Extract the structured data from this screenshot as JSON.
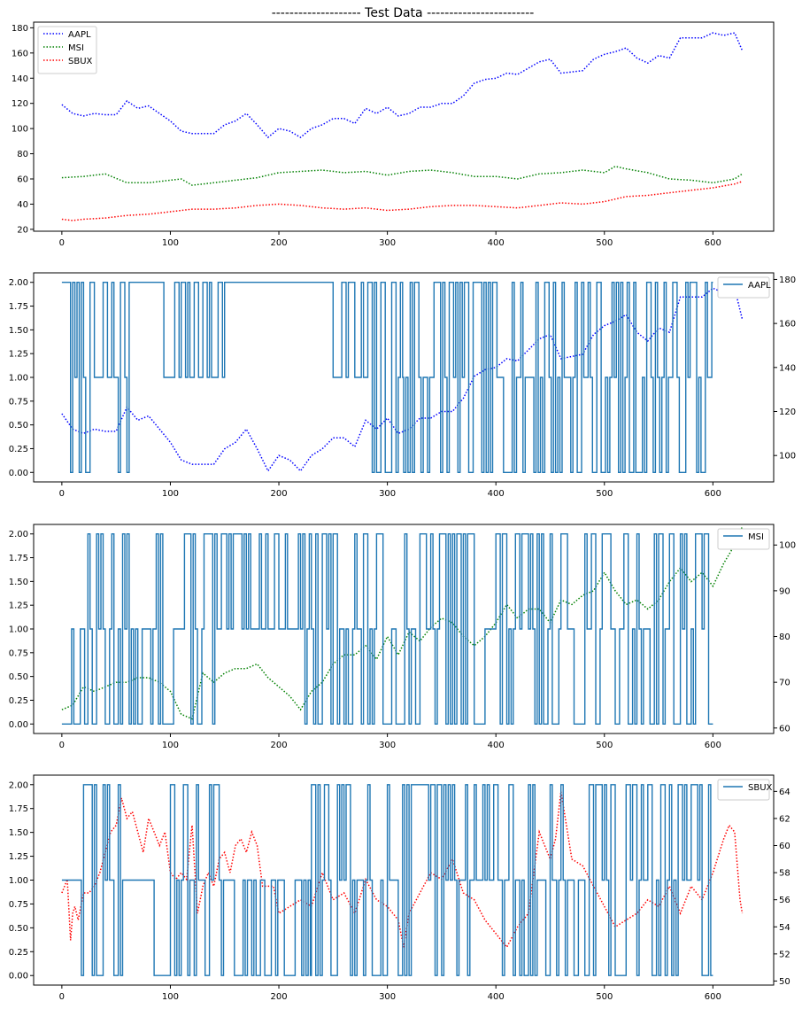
{
  "title": "-------------------- Test Data ------------------------",
  "colors": {
    "AAPL": "#0000ff",
    "MSI": "#008000",
    "SBUX": "#ff0000",
    "signal": "#1f77b4"
  },
  "chart_data": [
    {
      "type": "line",
      "title": "-------------------- Test Data ------------------------",
      "x_ticks": [
        0,
        100,
        200,
        300,
        400,
        500,
        600
      ],
      "y_ticks": [
        20,
        40,
        60,
        80,
        100,
        120,
        140,
        160,
        180
      ],
      "xlim": [
        -26,
        656
      ],
      "ylim": [
        18.5,
        184.5
      ],
      "grid": false,
      "legend": "top-left",
      "series": [
        {
          "name": "AAPL",
          "style": "dotted",
          "color": "#0000ff",
          "x": [
            0,
            10,
            20,
            30,
            40,
            50,
            60,
            70,
            80,
            90,
            100,
            110,
            120,
            130,
            140,
            150,
            160,
            170,
            180,
            190,
            200,
            210,
            220,
            230,
            240,
            250,
            260,
            270,
            280,
            290,
            300,
            310,
            320,
            330,
            340,
            350,
            360,
            370,
            380,
            390,
            400,
            410,
            420,
            430,
            440,
            450,
            460,
            470,
            480,
            490,
            500,
            510,
            520,
            530,
            540,
            550,
            560,
            570,
            580,
            590,
            600,
            610,
            620,
            627
          ],
          "y": [
            119,
            112,
            110,
            112,
            111,
            111,
            122,
            116,
            118,
            112,
            106,
            98,
            96,
            96,
            96,
            103,
            106,
            112,
            103,
            93,
            100,
            98,
            93,
            100,
            103,
            108,
            108,
            104,
            116,
            112,
            117,
            110,
            112,
            117,
            117,
            120,
            120,
            126,
            136,
            139,
            140,
            144,
            143,
            148,
            153,
            155,
            144,
            145,
            146,
            155,
            159,
            161,
            164,
            156,
            152,
            158,
            156,
            172,
            172,
            172,
            176,
            174,
            176,
            162
          ]
        },
        {
          "name": "MSI",
          "style": "dotted",
          "color": "#008000",
          "x": [
            0,
            20,
            40,
            60,
            80,
            100,
            110,
            120,
            140,
            160,
            180,
            200,
            220,
            240,
            260,
            280,
            300,
            320,
            340,
            360,
            380,
            400,
            420,
            440,
            460,
            480,
            500,
            510,
            520,
            540,
            560,
            580,
            600,
            620,
            627
          ],
          "y": [
            61,
            62,
            64,
            57,
            57,
            59,
            60,
            55,
            57,
            59,
            61,
            65,
            66,
            67,
            65,
            66,
            63,
            66,
            67,
            65,
            62,
            62,
            60,
            64,
            65,
            67,
            65,
            70,
            68,
            65,
            60,
            59,
            57,
            60,
            64
          ]
        },
        {
          "name": "SBUX",
          "style": "dotted",
          "color": "#ff0000",
          "x": [
            0,
            10,
            20,
            40,
            60,
            80,
            100,
            120,
            140,
            160,
            180,
            200,
            220,
            240,
            260,
            280,
            300,
            320,
            340,
            360,
            380,
            400,
            420,
            440,
            460,
            480,
            500,
            520,
            540,
            560,
            580,
            600,
            620,
            627
          ],
          "y": [
            28,
            27,
            28,
            29,
            31,
            32,
            34,
            36,
            36,
            37,
            39,
            40,
            39,
            37,
            36,
            37,
            35,
            36,
            38,
            39,
            39,
            38,
            37,
            39,
            41,
            40,
            42,
            46,
            47,
            49,
            51,
            53,
            56,
            58
          ]
        }
      ]
    },
    {
      "type": "line",
      "x_ticks": [
        0,
        100,
        200,
        300,
        400,
        500,
        600
      ],
      "y_ticks": [
        0.0,
        0.25,
        0.5,
        0.75,
        1.0,
        1.25,
        1.5,
        1.75,
        2.0
      ],
      "y2_ticks": [
        100,
        120,
        140,
        160,
        180
      ],
      "xlim": [
        -26,
        656
      ],
      "ylim": [
        -0.1,
        2.1
      ],
      "y2lim": [
        88,
        183
      ],
      "legend": "top-right",
      "series": [
        {
          "name": "AAPL",
          "axis": "right",
          "style": "solid",
          "color": "#1f77b4"
        },
        {
          "axis": "right",
          "style": "dotted",
          "color": "#0000ff",
          "price_of": "AAPL"
        },
        {
          "axis": "left",
          "style": "step",
          "color": "#1f77b4",
          "seed": 7,
          "values": [
            0,
            1,
            2
          ],
          "segments": [
            {
              "x": [
                0,
                8
              ],
              "levels": [
                2
              ]
            },
            {
              "x": [
                8,
                62
              ],
              "levels": [
                0,
                1,
                2
              ]
            },
            {
              "x": [
                62,
                92
              ],
              "levels": [
                2
              ]
            },
            {
              "x": [
                92,
                150
              ],
              "levels": [
                1,
                2
              ]
            },
            {
              "x": [
                150,
                250
              ],
              "levels": [
                2
              ]
            },
            {
              "x": [
                250,
                270
              ],
              "levels": [
                1,
                2
              ]
            },
            {
              "x": [
                270,
                315
              ],
              "levels": [
                0,
                1,
                2
              ]
            },
            {
              "x": [
                315,
                600
              ],
              "levels": [
                0,
                1,
                2
              ]
            }
          ]
        }
      ]
    },
    {
      "type": "line",
      "x_ticks": [
        0,
        100,
        200,
        300,
        400,
        500,
        600
      ],
      "y_ticks": [
        0.0,
        0.25,
        0.5,
        0.75,
        1.0,
        1.25,
        1.5,
        1.75,
        2.0
      ],
      "y2_ticks": [
        60,
        70,
        80,
        90,
        100
      ],
      "xlim": [
        -26,
        656
      ],
      "ylim": [
        -0.1,
        2.1
      ],
      "y2lim": [
        58.8,
        104.5
      ],
      "legend": "top-right",
      "series": [
        {
          "name": "MSI",
          "axis": "right",
          "style": "solid",
          "color": "#1f77b4"
        },
        {
          "axis": "right",
          "style": "dotted",
          "color": "#008000",
          "x": [
            0,
            10,
            20,
            30,
            40,
            50,
            60,
            70,
            80,
            90,
            100,
            110,
            120,
            130,
            140,
            150,
            160,
            170,
            180,
            190,
            200,
            210,
            220,
            230,
            240,
            250,
            260,
            270,
            280,
            290,
            300,
            310,
            320,
            330,
            340,
            350,
            360,
            370,
            380,
            390,
            400,
            410,
            420,
            430,
            440,
            450,
            460,
            470,
            480,
            490,
            500,
            510,
            520,
            530,
            540,
            550,
            560,
            570,
            580,
            590,
            600,
            610,
            620,
            627
          ],
          "y": [
            64,
            65,
            69,
            68,
            69,
            70,
            70,
            71,
            71,
            70,
            68,
            63,
            62,
            72,
            70,
            72,
            73,
            73,
            74,
            71,
            69,
            67,
            64,
            68,
            70,
            74,
            76,
            76,
            78,
            75,
            80,
            76,
            81,
            79,
            82,
            84,
            83,
            80,
            78,
            80,
            83,
            87,
            84,
            86,
            86,
            83,
            88,
            87,
            89,
            90,
            94,
            90,
            87,
            88,
            86,
            88,
            92,
            95,
            92,
            94,
            91,
            96,
            100,
            104
          ]
        },
        {
          "axis": "left",
          "style": "step",
          "color": "#1f77b4",
          "seed": 13,
          "values": [
            0,
            1,
            2
          ],
          "segments": [
            {
              "x": [
                0,
                5
              ],
              "levels": [
                0
              ]
            },
            {
              "x": [
                5,
                22
              ],
              "levels": [
                0,
                1
              ]
            },
            {
              "x": [
                22,
                62
              ],
              "levels": [
                0,
                1,
                2
              ]
            },
            {
              "x": [
                62,
                85
              ],
              "levels": [
                0,
                1
              ]
            },
            {
              "x": [
                85,
                150
              ],
              "levels": [
                0,
                1,
                2
              ]
            },
            {
              "x": [
                150,
                220
              ],
              "levels": [
                1,
                2
              ]
            },
            {
              "x": [
                220,
                600
              ],
              "levels": [
                0,
                1,
                2
              ]
            }
          ]
        }
      ]
    },
    {
      "type": "line",
      "x_ticks": [
        0,
        100,
        200,
        300,
        400,
        500,
        600
      ],
      "y_ticks": [
        0.0,
        0.25,
        0.5,
        0.75,
        1.0,
        1.25,
        1.5,
        1.75,
        2.0
      ],
      "y2_ticks": [
        50,
        52,
        54,
        56,
        58,
        60,
        62,
        64
      ],
      "xlim": [
        -26,
        656
      ],
      "ylim": [
        -0.1,
        2.1
      ],
      "y2lim": [
        49.7,
        65.2
      ],
      "legend": "top-right",
      "series": [
        {
          "name": "SBUX",
          "axis": "right",
          "style": "solid",
          "color": "#1f77b4"
        },
        {
          "axis": "right",
          "style": "dotted",
          "color": "#ff0000",
          "x": [
            0,
            5,
            8,
            10,
            12,
            15,
            20,
            25,
            30,
            35,
            40,
            45,
            50,
            55,
            60,
            65,
            70,
            75,
            80,
            85,
            90,
            95,
            100,
            105,
            110,
            115,
            120,
            125,
            130,
            135,
            140,
            145,
            150,
            155,
            160,
            165,
            170,
            175,
            180,
            185,
            190,
            195,
            200,
            210,
            220,
            230,
            240,
            250,
            260,
            270,
            280,
            290,
            300,
            310,
            315,
            320,
            330,
            340,
            350,
            360,
            370,
            380,
            390,
            400,
            410,
            420,
            430,
            440,
            450,
            455,
            460,
            470,
            480,
            490,
            500,
            510,
            520,
            530,
            540,
            550,
            560,
            570,
            580,
            590,
            600,
            610,
            615,
            620,
            625,
            627
          ],
          "y": [
            56.5,
            57.5,
            53,
            55,
            55.5,
            54.5,
            56.5,
            56.5,
            57,
            58,
            59.5,
            61,
            61.5,
            63.5,
            62,
            62.5,
            61,
            59.5,
            62,
            61,
            60,
            61,
            58,
            57.5,
            58,
            57.5,
            61.5,
            55,
            57,
            58,
            57,
            59,
            59.5,
            58,
            60,
            60.5,
            59.5,
            61,
            60,
            57,
            57,
            57,
            55,
            55.5,
            56,
            55.5,
            58,
            56,
            56.5,
            55,
            57.5,
            56,
            55.5,
            54.5,
            52.5,
            55,
            56.5,
            58,
            57.5,
            59,
            56.5,
            56,
            54.5,
            53.5,
            52.5,
            54,
            55,
            61,
            59,
            60.5,
            64,
            59,
            58.5,
            57,
            55.5,
            54,
            54.5,
            55,
            56,
            55.5,
            57,
            55,
            57,
            56,
            58,
            60.5,
            61.5,
            61,
            56,
            55
          ]
        },
        {
          "axis": "left",
          "style": "step",
          "color": "#1f77b4",
          "seed": 29,
          "values": [
            0,
            1,
            2
          ],
          "segments": [
            {
              "x": [
                0,
                18
              ],
              "levels": [
                1
              ]
            },
            {
              "x": [
                18,
                60
              ],
              "levels": [
                0,
                1,
                2
              ]
            },
            {
              "x": [
                60,
                85
              ],
              "levels": [
                1
              ]
            },
            {
              "x": [
                85,
                100
              ],
              "levels": [
                0
              ]
            },
            {
              "x": [
                100,
                145
              ],
              "levels": [
                0,
                1,
                2
              ]
            },
            {
              "x": [
                145,
                175
              ],
              "levels": [
                0,
                1
              ]
            },
            {
              "x": [
                175,
                230
              ],
              "levels": [
                0,
                1
              ]
            },
            {
              "x": [
                230,
                600
              ],
              "levels": [
                0,
                1,
                2
              ]
            }
          ]
        }
      ]
    }
  ]
}
